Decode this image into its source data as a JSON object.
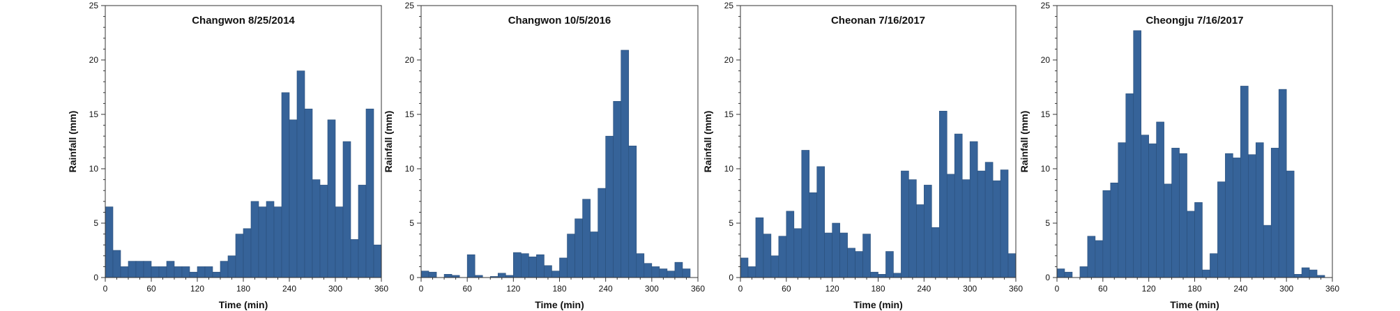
{
  "style": {
    "bar_fill": "#366399",
    "bar_stroke": "#2a4f7a",
    "axis_color": "#333333",
    "text_color": "#111111"
  },
  "chart_data": [
    {
      "type": "bar",
      "title": "Changwon 8/25/2014",
      "xlabel": "Time (min)",
      "ylabel": "Rainfall (mm)",
      "xlim": [
        0,
        360
      ],
      "ylim": [
        0,
        25
      ],
      "x_ticks": [
        0,
        60,
        120,
        180,
        240,
        300,
        360
      ],
      "y_ticks": [
        0,
        5,
        10,
        15,
        20,
        25
      ],
      "bin_width_min": 10,
      "x": [
        10,
        20,
        30,
        40,
        50,
        60,
        70,
        80,
        90,
        100,
        110,
        120,
        130,
        140,
        150,
        160,
        170,
        180,
        190,
        200,
        210,
        220,
        230,
        240,
        250,
        260,
        270,
        280,
        290,
        300,
        310,
        320,
        330,
        340,
        350,
        360
      ],
      "values": [
        6.5,
        2.5,
        1.0,
        1.5,
        1.5,
        1.5,
        1.0,
        1.0,
        1.5,
        1.0,
        1.0,
        0.5,
        1.0,
        1.0,
        0.5,
        1.5,
        2.0,
        4.0,
        4.5,
        7.0,
        6.5,
        7.0,
        6.5,
        17.0,
        14.5,
        19.0,
        15.5,
        9.0,
        8.5,
        14.5,
        6.5,
        12.5,
        3.5,
        8.5,
        15.5,
        3.0
      ],
      "grid": false
    },
    {
      "type": "bar",
      "title": "Changwon 10/5/2016",
      "xlabel": "Time (min)",
      "ylabel": "Rainfall (mm)",
      "xlim": [
        0,
        360
      ],
      "ylim": [
        0,
        25
      ],
      "x_ticks": [
        0,
        60,
        120,
        180,
        240,
        300,
        360
      ],
      "y_ticks": [
        0,
        5,
        10,
        15,
        20,
        25
      ],
      "bin_width_min": 10,
      "x": [
        10,
        20,
        30,
        40,
        50,
        60,
        70,
        80,
        90,
        100,
        110,
        120,
        130,
        140,
        150,
        160,
        170,
        180,
        190,
        200,
        210,
        220,
        230,
        240,
        250,
        260,
        270,
        280,
        290,
        300,
        310,
        320,
        330,
        340,
        350
      ],
      "values": [
        0.6,
        0.5,
        0.0,
        0.3,
        0.2,
        0.0,
        2.1,
        0.2,
        0.0,
        0.1,
        0.4,
        0.2,
        2.3,
        2.2,
        1.9,
        2.1,
        1.1,
        0.6,
        1.8,
        4.0,
        5.4,
        7.2,
        4.2,
        8.2,
        13.0,
        16.2,
        20.9,
        12.1,
        2.2,
        1.3,
        1.0,
        0.8,
        0.6,
        1.4,
        0.8
      ],
      "grid": false
    },
    {
      "type": "bar",
      "title": "Cheonan 7/16/2017",
      "xlabel": "Time (min)",
      "ylabel": "Rainfall (mm)",
      "xlim": [
        0,
        360
      ],
      "ylim": [
        0,
        25
      ],
      "x_ticks": [
        0,
        60,
        120,
        180,
        240,
        300,
        360
      ],
      "y_ticks": [
        0,
        5,
        10,
        15,
        20,
        25
      ],
      "bin_width_min": 10,
      "x": [
        10,
        20,
        30,
        40,
        50,
        60,
        70,
        80,
        90,
        100,
        110,
        120,
        130,
        140,
        150,
        160,
        170,
        180,
        190,
        200,
        210,
        220,
        230,
        240,
        250,
        260,
        270,
        280,
        290,
        300,
        310,
        320,
        330,
        340,
        350,
        360
      ],
      "values": [
        1.8,
        1.0,
        5.5,
        4.0,
        2.0,
        3.8,
        6.1,
        4.5,
        11.7,
        7.8,
        10.2,
        4.1,
        5.0,
        4.1,
        2.7,
        2.4,
        4.0,
        0.5,
        0.3,
        2.4,
        0.4,
        9.8,
        9.0,
        6.7,
        8.5,
        4.6,
        15.3,
        9.5,
        13.2,
        9.0,
        12.5,
        9.8,
        10.6,
        8.9,
        9.9,
        2.2
      ],
      "grid": false
    },
    {
      "type": "bar",
      "title": "Cheongju 7/16/2017",
      "xlabel": "Time (min)",
      "ylabel": "Rainfall (mm)",
      "xlim": [
        0,
        360
      ],
      "ylim": [
        0,
        25
      ],
      "x_ticks": [
        0,
        60,
        120,
        180,
        240,
        300,
        360
      ],
      "y_ticks": [
        0,
        5,
        10,
        15,
        20,
        25
      ],
      "bin_width_min": 10,
      "x": [
        10,
        20,
        30,
        40,
        50,
        60,
        70,
        80,
        90,
        100,
        110,
        120,
        130,
        140,
        150,
        160,
        170,
        180,
        190,
        200,
        210,
        220,
        230,
        240,
        250,
        260,
        270,
        280,
        290,
        300,
        310,
        320,
        330,
        340,
        350
      ],
      "values": [
        0.8,
        0.5,
        0.0,
        1.0,
        3.8,
        3.4,
        8.0,
        8.7,
        12.4,
        16.9,
        22.7,
        13.1,
        12.3,
        14.3,
        8.6,
        11.9,
        11.4,
        6.1,
        6.9,
        0.7,
        2.2,
        8.8,
        11.4,
        11.0,
        17.6,
        11.3,
        12.4,
        4.8,
        11.9,
        17.3,
        9.8,
        0.3,
        0.9,
        0.7,
        0.2
      ],
      "grid": false
    }
  ]
}
